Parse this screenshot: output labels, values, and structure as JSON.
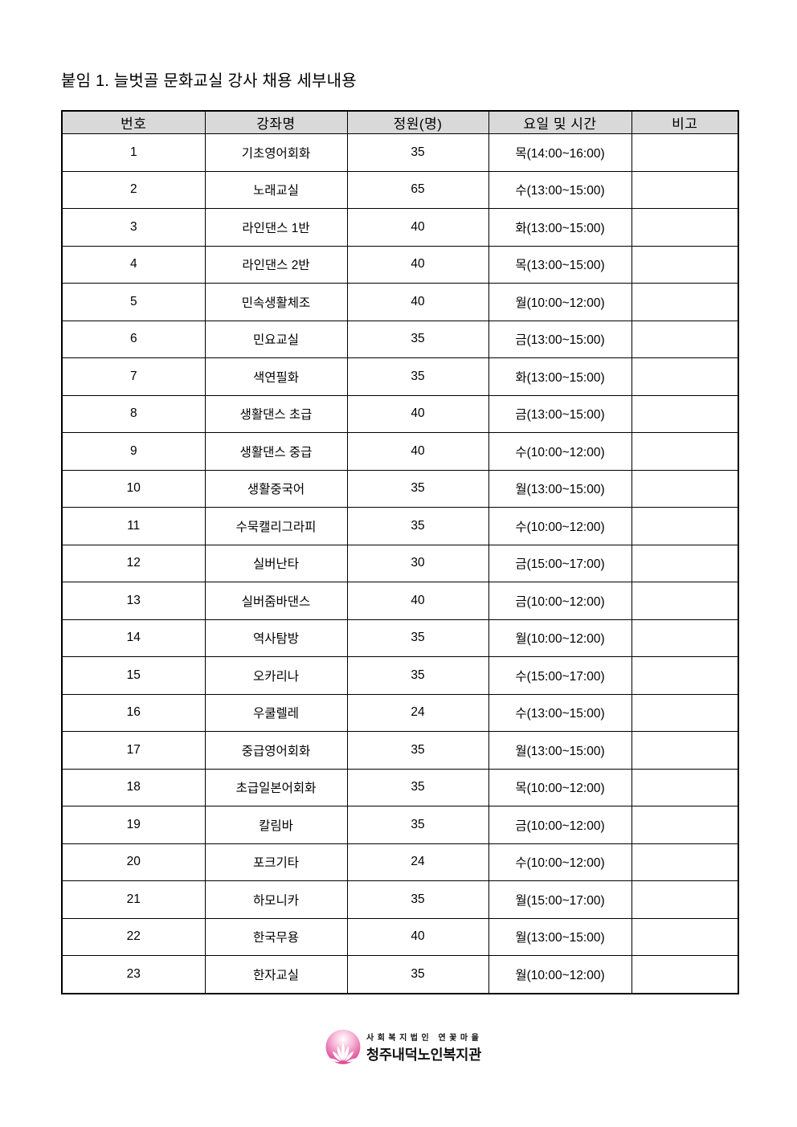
{
  "title": "붙임 1. 늘벗골 문화교실 강사 채용 세부내용",
  "table": {
    "headers": [
      "번호",
      "강좌명",
      "정원(명)",
      "요일 및 시간",
      "비고"
    ],
    "rows": [
      {
        "no": "1",
        "course": "기초영어회화",
        "capacity": "35",
        "schedule": "목(14:00~16:00)",
        "note": ""
      },
      {
        "no": "2",
        "course": "노래교실",
        "capacity": "65",
        "schedule": "수(13:00~15:00)",
        "note": ""
      },
      {
        "no": "3",
        "course": "라인댄스 1반",
        "capacity": "40",
        "schedule": "화(13:00~15:00)",
        "note": ""
      },
      {
        "no": "4",
        "course": "라인댄스 2반",
        "capacity": "40",
        "schedule": "목(13:00~15:00)",
        "note": ""
      },
      {
        "no": "5",
        "course": "민속생활체조",
        "capacity": "40",
        "schedule": "월(10:00~12:00)",
        "note": ""
      },
      {
        "no": "6",
        "course": "민요교실",
        "capacity": "35",
        "schedule": "금(13:00~15:00)",
        "note": ""
      },
      {
        "no": "7",
        "course": "색연필화",
        "capacity": "35",
        "schedule": "화(13:00~15:00)",
        "note": ""
      },
      {
        "no": "8",
        "course": "생활댄스 초급",
        "capacity": "40",
        "schedule": "금(13:00~15:00)",
        "note": ""
      },
      {
        "no": "9",
        "course": "생활댄스 중급",
        "capacity": "40",
        "schedule": "수(10:00~12:00)",
        "note": ""
      },
      {
        "no": "10",
        "course": "생활중국어",
        "capacity": "35",
        "schedule": "월(13:00~15:00)",
        "note": ""
      },
      {
        "no": "11",
        "course": "수묵캘리그라피",
        "capacity": "35",
        "schedule": "수(10:00~12:00)",
        "note": ""
      },
      {
        "no": "12",
        "course": "실버난타",
        "capacity": "30",
        "schedule": "금(15:00~17:00)",
        "note": ""
      },
      {
        "no": "13",
        "course": "실버줌바댄스",
        "capacity": "40",
        "schedule": "금(10:00~12:00)",
        "note": ""
      },
      {
        "no": "14",
        "course": "역사탐방",
        "capacity": "35",
        "schedule": "월(10:00~12:00)",
        "note": ""
      },
      {
        "no": "15",
        "course": "오카리나",
        "capacity": "35",
        "schedule": "수(15:00~17:00)",
        "note": ""
      },
      {
        "no": "16",
        "course": "우쿨렐레",
        "capacity": "24",
        "schedule": "수(13:00~15:00)",
        "note": ""
      },
      {
        "no": "17",
        "course": "중급영어회화",
        "capacity": "35",
        "schedule": "월(13:00~15:00)",
        "note": ""
      },
      {
        "no": "18",
        "course": "초급일본어회화",
        "capacity": "35",
        "schedule": "목(10:00~12:00)",
        "note": ""
      },
      {
        "no": "19",
        "course": "칼림바",
        "capacity": "35",
        "schedule": "금(10:00~12:00)",
        "note": ""
      },
      {
        "no": "20",
        "course": "포크기타",
        "capacity": "24",
        "schedule": "수(10:00~12:00)",
        "note": ""
      },
      {
        "no": "21",
        "course": "하모니카",
        "capacity": "35",
        "schedule": "월(15:00~17:00)",
        "note": ""
      },
      {
        "no": "22",
        "course": "한국무용",
        "capacity": "40",
        "schedule": "월(13:00~15:00)",
        "note": ""
      },
      {
        "no": "23",
        "course": "한자교실",
        "capacity": "35",
        "schedule": "월(10:00~12:00)",
        "note": ""
      }
    ]
  },
  "footer": {
    "foundation": "사회복지법인 연꽃마을",
    "center": "청주내덕노인복지관"
  },
  "colors": {
    "header_bg": "#d9d9d9",
    "table_border": "#000000",
    "logo_pink": "#e2569e",
    "logo_deep_pink": "#d01d77"
  }
}
